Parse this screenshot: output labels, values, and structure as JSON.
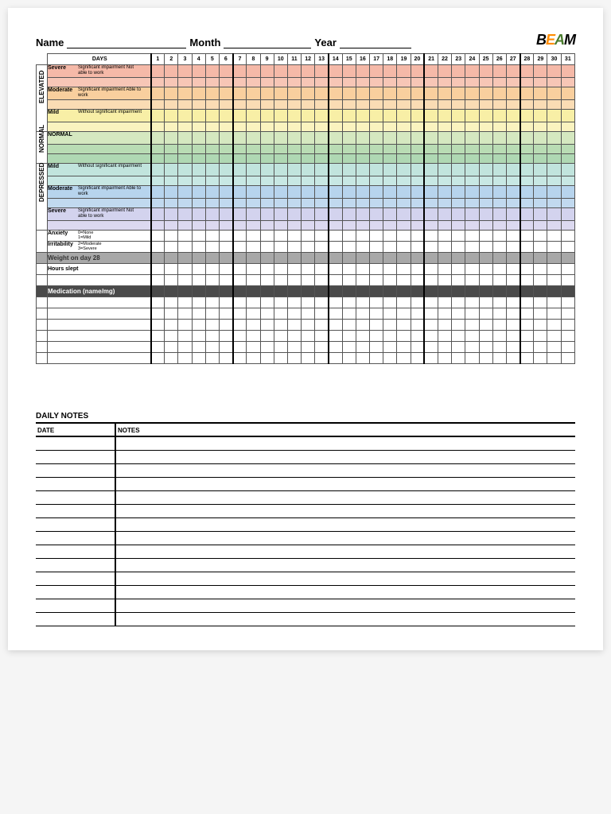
{
  "header": {
    "name_label": "Name",
    "month_label": "Month",
    "year_label": "Year",
    "logo": {
      "b": "B",
      "e": "E",
      "a": "A",
      "m": "M"
    }
  },
  "days_label": "DAYS",
  "days": [
    "1",
    "2",
    "3",
    "4",
    "5",
    "6",
    "7",
    "8",
    "9",
    "10",
    "11",
    "12",
    "13",
    "14",
    "15",
    "16",
    "17",
    "18",
    "19",
    "20",
    "21",
    "22",
    "23",
    "24",
    "25",
    "26",
    "27",
    "28",
    "29",
    "30",
    "31"
  ],
  "thick_left_days": [
    1,
    7,
    14,
    21,
    28
  ],
  "side_sections": [
    {
      "label": "ELEVATED",
      "rows": 6
    },
    {
      "label": "NORMAL",
      "rows": 3
    },
    {
      "label": "DEPRESSED",
      "rows": 6
    }
  ],
  "mood_rows": [
    {
      "level": "Severe",
      "desc": "Significant impairment Not able to work",
      "colors": [
        "#f5b9a8",
        "#f7c6b6"
      ]
    },
    {
      "level": "",
      "desc": "",
      "colors": [
        "#f7c6b6",
        "#f9d3c5"
      ]
    },
    {
      "level": "Moderate",
      "desc": "Significant impairment Able to work",
      "colors": [
        "#f9cf9e",
        "#fadcb4"
      ]
    },
    {
      "level": "",
      "desc": "",
      "colors": [
        "#fadcb4",
        "#fde8c9"
      ]
    },
    {
      "level": "Mild",
      "desc": "Without significant impairment",
      "colors": [
        "#f8efa6",
        "#faf3bf"
      ]
    },
    {
      "level": "",
      "desc": "",
      "colors": [
        "#faf3bf",
        "#f4f2c8"
      ]
    },
    {
      "level": "NORMAL",
      "desc": "",
      "colors": [
        "#d5e8c0",
        "#c9e3bb"
      ]
    },
    {
      "level": "",
      "desc": "",
      "colors": [
        "#b9dcb4",
        "#afd8b3"
      ]
    },
    {
      "level": "",
      "desc": "",
      "colors": [
        "#afd8b3",
        "#b5ddc9"
      ]
    },
    {
      "level": "Mild",
      "desc": "Without significant impairment",
      "colors": [
        "#c1e4dd",
        "#c8e8e4"
      ]
    },
    {
      "level": "",
      "desc": "",
      "colors": [
        "#c8e8e4",
        "#c4e1ea"
      ]
    },
    {
      "level": "Moderate",
      "desc": "Significant impairment Able to work",
      "colors": [
        "#b7d4ed",
        "#c1d9ef"
      ]
    },
    {
      "level": "",
      "desc": "",
      "colors": [
        "#c1d9ef",
        "#c7d5ee"
      ]
    },
    {
      "level": "Severe",
      "desc": "Significant impairment Not able to work",
      "colors": [
        "#d3d3ee",
        "#dcd9f0"
      ]
    },
    {
      "level": "",
      "desc": "",
      "colors": [
        "#dcd9f0",
        "#e6e2f3"
      ]
    }
  ],
  "extra_rows": {
    "anxiety_label": "Anxiety",
    "irritability_label": "Irritability",
    "scale_text": "0=None\n1=Mild\n2=Moderate\n3=Severe",
    "weight_label": "Weight on day 28",
    "hours_label": "Hours slept",
    "medication_label": "Medication (name/mg)",
    "blank_rows_after_hours": 1,
    "blank_rows_after_med": 6
  },
  "notes": {
    "title": "DAILY NOTES",
    "date_label": "DATE",
    "notes_label": "NOTES",
    "row_count": 14
  }
}
